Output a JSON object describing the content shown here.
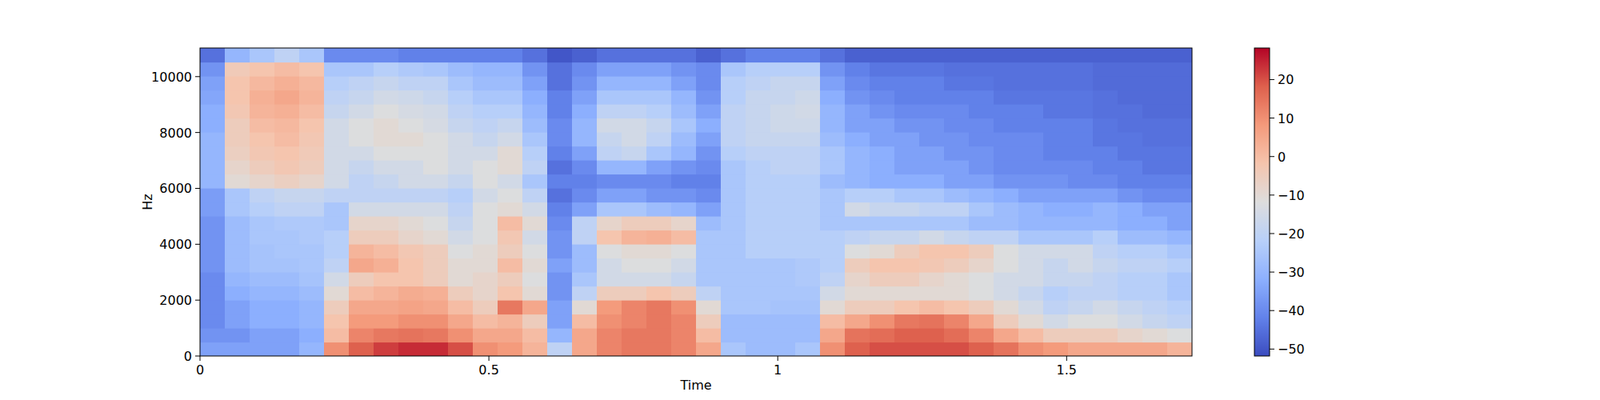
{
  "chart_data": {
    "type": "heatmap",
    "x_label": "Time",
    "y_label": "Hz",
    "xlim": [
      0,
      1.717
    ],
    "xticks": [
      0,
      0.5,
      1,
      1.5
    ],
    "ylim": [
      0,
      11025
    ],
    "yticks": [
      0,
      2000,
      4000,
      6000,
      8000,
      10000
    ],
    "cells": [
      [
        -35,
        -38,
        -40,
        -40,
        -40,
        -40,
        -38,
        -38,
        -38,
        -38,
        -36,
        -36,
        -30,
        -30,
        -30,
        -30,
        -32,
        -32,
        -34,
        -35,
        -38,
        -45
      ],
      [
        -35,
        -38,
        -35,
        -35,
        -32,
        -30,
        -28,
        -28,
        -28,
        -28,
        -25,
        -25,
        -10,
        -8,
        -6,
        -5,
        -5,
        -3,
        -2,
        -2,
        -4,
        -30
      ],
      [
        -35,
        -35,
        -32,
        -32,
        -30,
        -28,
        -26,
        -26,
        -25,
        -25,
        -22,
        -20,
        -8,
        -5,
        -3,
        -2,
        0,
        2,
        3,
        1,
        -2,
        -25
      ],
      [
        -35,
        -35,
        -32,
        -32,
        -30,
        -28,
        -26,
        -25,
        -25,
        -24,
        -20,
        -18,
        -6,
        -3,
        -2,
        0,
        1,
        3,
        5,
        3,
        0,
        -20
      ],
      [
        -30,
        -32,
        -30,
        -30,
        -28,
        -26,
        -25,
        -25,
        -24,
        -24,
        -20,
        -18,
        -8,
        -5,
        -4,
        -3,
        -2,
        0,
        2,
        1,
        -2,
        -25
      ],
      [
        10,
        0,
        -2,
        -5,
        -10,
        -15,
        -20,
        -22,
        -22,
        -25,
        -25,
        -20,
        -15,
        -15,
        -15,
        -15,
        -15,
        -18,
        -20,
        -22,
        -25,
        -40
      ],
      [
        18,
        12,
        8,
        5,
        0,
        -5,
        5,
        2,
        -5,
        -8,
        -15,
        -20,
        -20,
        -18,
        -15,
        -12,
        -12,
        -15,
        -18,
        -20,
        -25,
        -40
      ],
      [
        22,
        14,
        8,
        5,
        2,
        -2,
        3,
        0,
        -5,
        -8,
        -15,
        -20,
        -18,
        -15,
        -12,
        -10,
        -10,
        -12,
        -15,
        -18,
        -22,
        -40
      ],
      [
        24,
        15,
        10,
        6,
        4,
        -2,
        -2,
        -3,
        -8,
        -10,
        -15,
        -20,
        -15,
        -15,
        -12,
        -10,
        -12,
        -14,
        -16,
        -20,
        -24,
        -42
      ],
      [
        24,
        14,
        10,
        5,
        3,
        -5,
        -5,
        -5,
        -10,
        -12,
        -15,
        -20,
        -15,
        -12,
        -12,
        -12,
        -14,
        -15,
        -18,
        -20,
        -25,
        -42
      ],
      [
        20,
        10,
        5,
        0,
        -5,
        -10,
        -10,
        -12,
        -15,
        -18,
        -20,
        -22,
        -18,
        -15,
        -15,
        -15,
        -18,
        -20,
        -22,
        -25,
        -28,
        -42
      ],
      [
        10,
        5,
        0,
        -5,
        -8,
        -8,
        -10,
        -10,
        -12,
        -12,
        -12,
        -15,
        -12,
        -12,
        -15,
        -18,
        -20,
        -22,
        -25,
        -28,
        -30,
        -42
      ],
      [
        8,
        5,
        2,
        14,
        -2,
        -5,
        0,
        -5,
        -3,
        0,
        -10,
        -12,
        -15,
        -10,
        -10,
        -15,
        -18,
        -22,
        -25,
        -28,
        -30,
        -42
      ],
      [
        2,
        0,
        -5,
        5,
        -10,
        -12,
        -10,
        -12,
        -15,
        -10,
        -15,
        -20,
        -25,
        -20,
        -22,
        -25,
        -28,
        -30,
        -32,
        -35,
        -38,
        -45
      ],
      [
        -20,
        -30,
        -35,
        -35,
        -38,
        -38,
        -35,
        -38,
        -38,
        -40,
        -42,
        -45,
        -42,
        -45,
        -42,
        -40,
        -40,
        -42,
        -42,
        -45,
        -45,
        -50
      ],
      [
        5,
        5,
        0,
        -10,
        -20,
        -25,
        -28,
        -28,
        -20,
        -20,
        -35,
        -40,
        -42,
        -40,
        -35,
        -30,
        -30,
        -32,
        -35,
        -38,
        -40,
        -48
      ],
      [
        12,
        12,
        10,
        8,
        -5,
        -15,
        -15,
        -12,
        -2,
        -8,
        -25,
        -35,
        -40,
        -30,
        -20,
        -18,
        -15,
        -20,
        -25,
        -30,
        -35,
        -45
      ],
      [
        14,
        14,
        12,
        12,
        -5,
        -15,
        -12,
        -10,
        2,
        -5,
        -25,
        -35,
        -40,
        -30,
        -18,
        -15,
        -15,
        -20,
        -25,
        -30,
        -35,
        -45
      ],
      [
        14,
        14,
        14,
        14,
        -2,
        -15,
        -12,
        -10,
        3,
        -5,
        -28,
        -38,
        -40,
        -35,
        -25,
        -20,
        -18,
        -22,
        -25,
        -30,
        -35,
        -45
      ],
      [
        12,
        12,
        12,
        10,
        -5,
        -18,
        -15,
        -12,
        0,
        -8,
        -30,
        -38,
        -42,
        -38,
        -30,
        -28,
        -25,
        -28,
        -30,
        -35,
        -38,
        -45
      ],
      [
        5,
        0,
        -5,
        -10,
        -20,
        -25,
        -25,
        -25,
        -25,
        -28,
        -35,
        -40,
        -42,
        -40,
        -38,
        -35,
        -32,
        -35,
        -38,
        -40,
        -40,
        -48
      ],
      [
        -25,
        -28,
        -28,
        -25,
        -25,
        -25,
        -25,
        -25,
        -25,
        -25,
        -25,
        -25,
        -25,
        -25,
        -22,
        -20,
        -20,
        -20,
        -22,
        -22,
        -25,
        -45
      ],
      [
        -28,
        -28,
        -28,
        -25,
        -25,
        -25,
        -25,
        -22,
        -22,
        -22,
        -22,
        -22,
        -22,
        -22,
        -20,
        -18,
        -18,
        -18,
        -18,
        -20,
        -22,
        -42
      ],
      [
        -28,
        -28,
        -28,
        -26,
        -25,
        -25,
        -25,
        -22,
        -22,
        -22,
        -22,
        -22,
        -22,
        -20,
        -20,
        -18,
        -16,
        -16,
        -18,
        -18,
        -22,
        -42
      ],
      [
        -25,
        -28,
        -28,
        -26,
        -25,
        -24,
        -24,
        -22,
        -22,
        -22,
        -22,
        -22,
        -22,
        -20,
        -20,
        -18,
        -16,
        -15,
        -16,
        -18,
        -22,
        -42
      ],
      [
        10,
        5,
        0,
        -10,
        -15,
        -20,
        -22,
        -22,
        -22,
        -25,
        -25,
        -25,
        -28,
        -25,
        -25,
        -28,
        -30,
        -30,
        -32,
        -35,
        -38,
        -45
      ],
      [
        18,
        15,
        5,
        -5,
        -10,
        -8,
        -5,
        -12,
        -20,
        -25,
        -15,
        -22,
        -30,
        -30,
        -30,
        -32,
        -35,
        -35,
        -38,
        -40,
        -42,
        -48
      ],
      [
        20,
        16,
        10,
        -5,
        -10,
        -5,
        -2,
        -10,
        -18,
        -25,
        -18,
        -22,
        -32,
        -32,
        -32,
        -35,
        -35,
        -38,
        -40,
        -42,
        -44,
        -48
      ],
      [
        20,
        18,
        14,
        -2,
        -10,
        -5,
        -2,
        -5,
        -18,
        -25,
        -18,
        -25,
        -32,
        -35,
        -35,
        -35,
        -38,
        -40,
        -42,
        -42,
        -44,
        -48
      ],
      [
        20,
        18,
        15,
        0,
        -10,
        -8,
        -3,
        -2,
        -15,
        -25,
        -20,
        -25,
        -32,
        -35,
        -35,
        -38,
        -38,
        -40,
        -42,
        -42,
        -44,
        -48
      ],
      [
        20,
        16,
        12,
        -2,
        -10,
        -10,
        -5,
        -2,
        -18,
        -25,
        -20,
        -28,
        -35,
        -35,
        -38,
        -38,
        -40,
        -40,
        -42,
        -44,
        -45,
        -48
      ],
      [
        18,
        12,
        5,
        -5,
        -12,
        -12,
        -8,
        -5,
        -20,
        -28,
        -25,
        -30,
        -35,
        -38,
        -38,
        -40,
        -40,
        -42,
        -42,
        -44,
        -45,
        -48
      ],
      [
        15,
        5,
        -5,
        -10,
        -15,
        -15,
        -12,
        -12,
        -20,
        -28,
        -28,
        -32,
        -38,
        -40,
        -40,
        -40,
        -42,
        -42,
        -44,
        -45,
        -45,
        -48
      ],
      [
        10,
        0,
        -10,
        -15,
        -18,
        -15,
        -15,
        -15,
        -25,
        -30,
        -30,
        -35,
        -38,
        -40,
        -40,
        -40,
        -42,
        -42,
        -44,
        -45,
        -45,
        -48
      ],
      [
        8,
        -5,
        -15,
        -20,
        -22,
        -18,
        -18,
        -15,
        -25,
        -30,
        -32,
        -35,
        -38,
        -40,
        -42,
        -42,
        -42,
        -44,
        -44,
        -45,
        -45,
        -48
      ],
      [
        5,
        -5,
        -12,
        -18,
        -20,
        -18,
        -15,
        -15,
        -25,
        -30,
        -32,
        -35,
        -40,
        -40,
        -42,
        -42,
        -42,
        -44,
        -44,
        -45,
        -45,
        -48
      ],
      [
        5,
        -5,
        -12,
        -15,
        -20,
        -20,
        -18,
        -20,
        -22,
        -30,
        -30,
        -35,
        -40,
        -42,
        -42,
        -44,
        -44,
        -45,
        -45,
        -46,
        -46,
        -48
      ],
      [
        5,
        -8,
        -15,
        -18,
        -22,
        -22,
        -20,
        -22,
        -28,
        -32,
        -32,
        -38,
        -42,
        -42,
        -44,
        -44,
        -45,
        -45,
        -46,
        -46,
        -46,
        -48
      ],
      [
        5,
        -10,
        -18,
        -20,
        -22,
        -22,
        -20,
        -22,
        -28,
        -32,
        -35,
        -40,
        -42,
        -44,
        -44,
        -45,
        -45,
        -46,
        -46,
        -46,
        -46,
        -48
      ],
      [
        2,
        -12,
        -20,
        -22,
        -25,
        -25,
        -22,
        -25,
        -30,
        -35,
        -35,
        -40,
        -42,
        -44,
        -44,
        -45,
        -45,
        -46,
        -46,
        -46,
        -46,
        -48
      ]
    ],
    "colorbar": {
      "range": [
        -51.8,
        28.2
      ],
      "ticks": [
        {
          "value": -50,
          "label": "−50"
        },
        {
          "value": -40,
          "label": "−40"
        },
        {
          "value": -30,
          "label": "−30"
        },
        {
          "value": -20,
          "label": "−20"
        },
        {
          "value": -10,
          "label": "−10"
        },
        0,
        10,
        20
      ]
    }
  }
}
